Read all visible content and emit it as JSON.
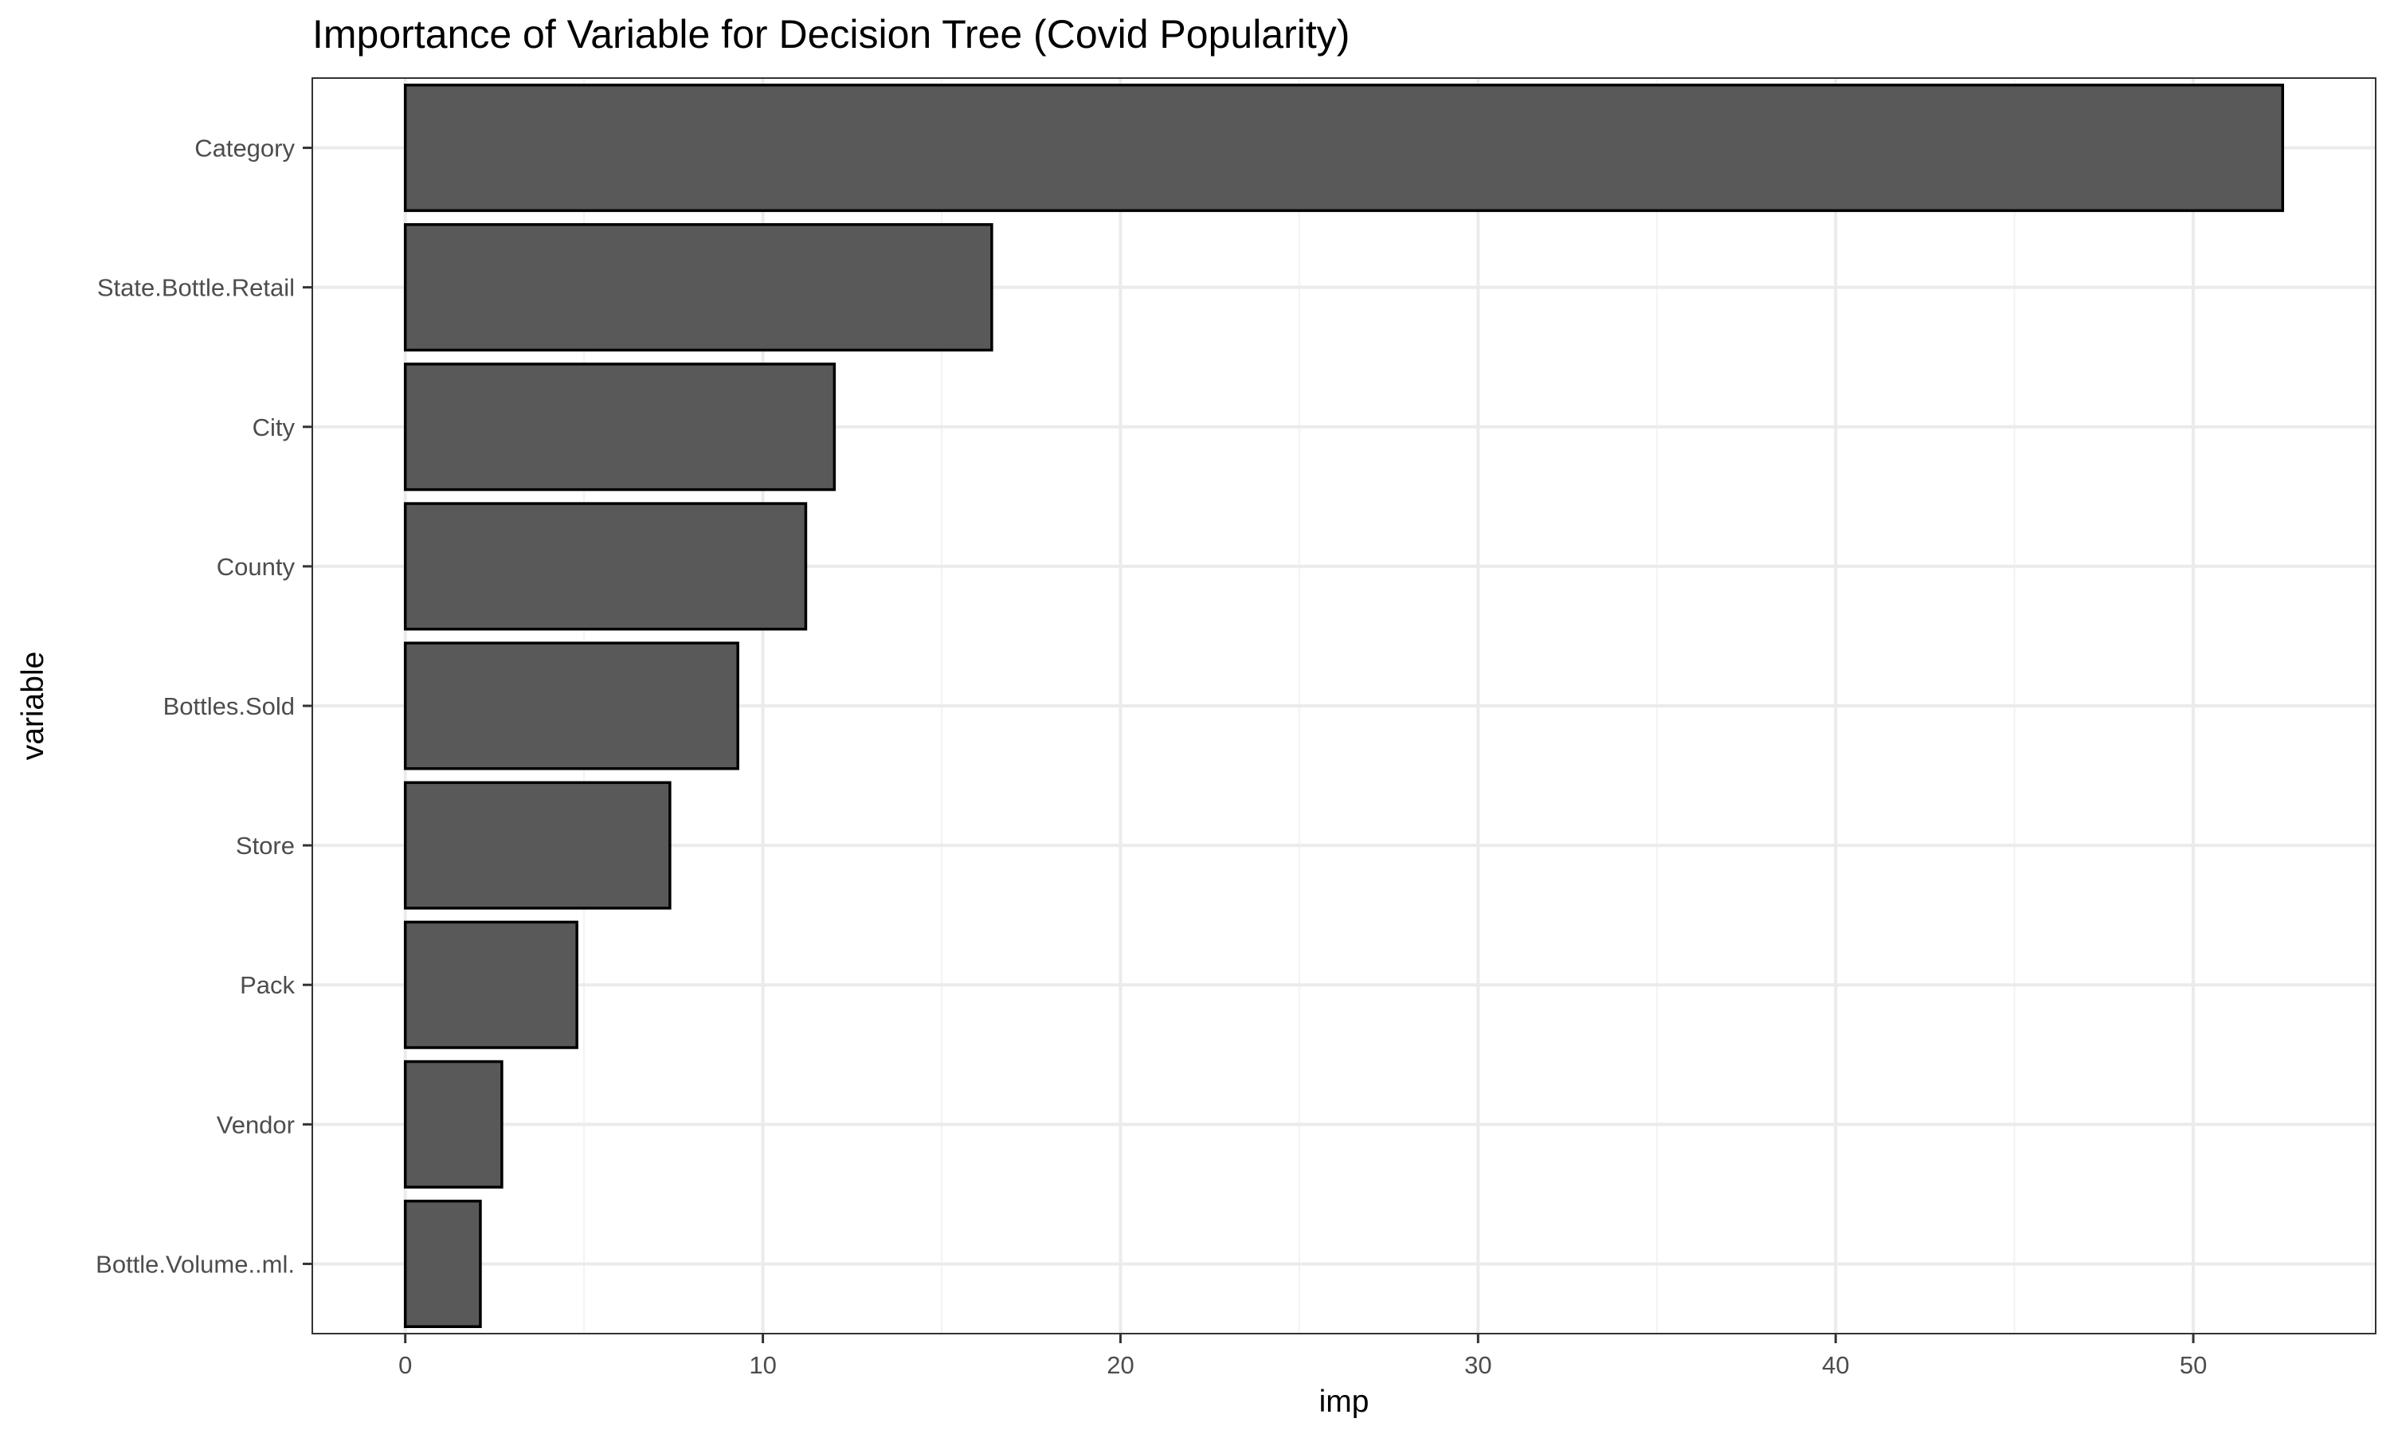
{
  "chart_data": {
    "type": "bar",
    "orientation": "horizontal",
    "title": "Importance of Variable for Decision Tree (Covid Popularity)",
    "xlabel": "imp",
    "ylabel": "variable",
    "categories": [
      "Category",
      "State.Bottle.Retail",
      "City",
      "County",
      "Bottles.Sold",
      "Store",
      "Pack",
      "Vendor",
      "Bottle.Volume..ml."
    ],
    "values": [
      52.5,
      16.4,
      12.0,
      11.2,
      9.3,
      7.4,
      4.8,
      2.7,
      2.1
    ],
    "xlim": [
      -2.6,
      55.1
    ],
    "xticks": [
      0,
      10,
      20,
      30,
      40,
      50
    ],
    "grid": true,
    "legend": "none",
    "colors": {
      "bar_fill": "#595959",
      "bar_stroke": "#000000",
      "grid_major": "#ebebeb",
      "grid_minor": "#f3f3f3",
      "panel_border": "#333333",
      "tick_text": "#4d4d4d"
    }
  }
}
